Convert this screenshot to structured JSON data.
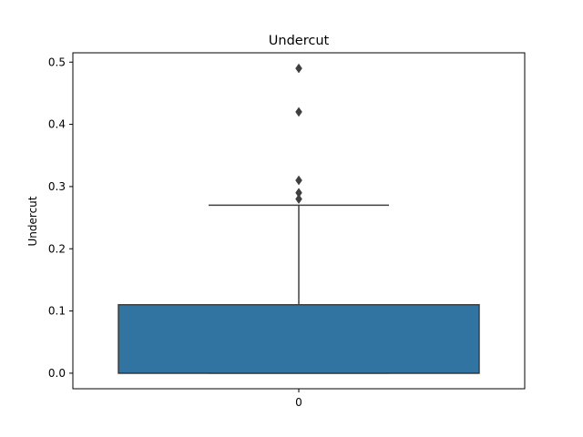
{
  "chart_data": {
    "type": "box",
    "title": "Undercut",
    "xlabel": "",
    "ylabel": "Undercut",
    "categories": [
      "0"
    ],
    "ylim": [
      -0.025,
      0.515
    ],
    "yticks": [
      0.0,
      0.1,
      0.2,
      0.3,
      0.4,
      0.5
    ],
    "ytick_labels": [
      "0.0",
      "0.1",
      "0.2",
      "0.3",
      "0.4",
      "0.5"
    ],
    "grid": false,
    "box": {
      "q1": 0.0,
      "median": 0.0,
      "q3": 0.11,
      "whisker_low": 0.0,
      "whisker_high": 0.27,
      "outliers": [
        0.28,
        0.29,
        0.31,
        0.42,
        0.49
      ]
    },
    "colors": {
      "box_fill": "#3274a1",
      "line": "#3f3f3f"
    }
  }
}
